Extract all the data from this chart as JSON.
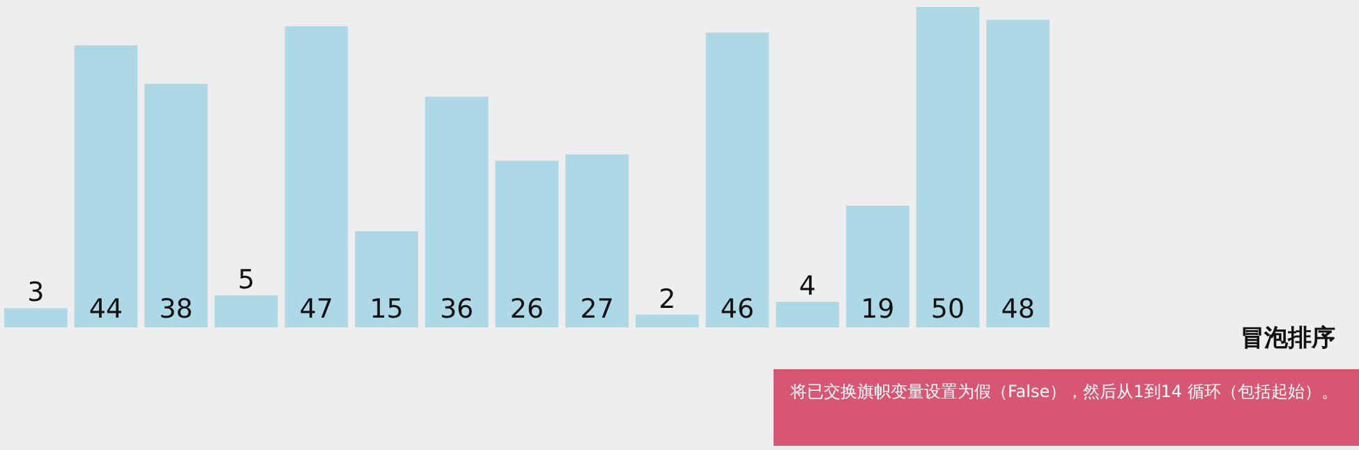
{
  "chart_data": {
    "type": "bar",
    "title": "冒泡排序",
    "categories": [
      null,
      null,
      null,
      null,
      null,
      null,
      null,
      null,
      null,
      null,
      null,
      null,
      null,
      null,
      null
    ],
    "values": [
      3,
      44,
      38,
      5,
      47,
      15,
      36,
      26,
      27,
      2,
      46,
      4,
      19,
      50,
      48
    ],
    "color": "#add8e6",
    "data_labels": true,
    "annotations": [
      "将已交换旗帜变量设置为假（False），然后从1到14 循环（包括起始）。"
    ]
  }
}
